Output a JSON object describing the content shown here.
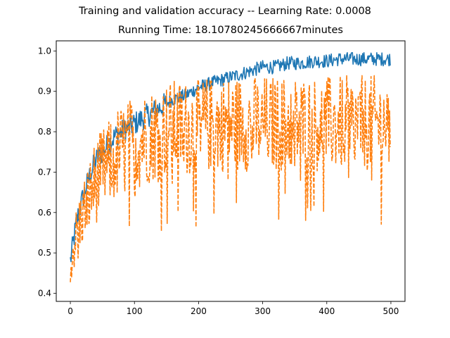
{
  "chart_data": {
    "type": "line",
    "suptitle": "Training and validation accuracy -- Learning Rate: 0.0008",
    "title": "Running Time: 18.10780245666667minutes",
    "xlabel": "",
    "ylabel": "",
    "xlim": [
      -22,
      522
    ],
    "ylim": [
      0.38,
      1.025
    ],
    "xticks": [
      0,
      100,
      200,
      300,
      400,
      500
    ],
    "xtick_labels": [
      "0",
      "100",
      "200",
      "300",
      "400",
      "500"
    ],
    "yticks": [
      0.4,
      0.5,
      0.6,
      0.7,
      0.8,
      0.9,
      1.0
    ],
    "ytick_labels": [
      "0.4",
      "0.5",
      "0.6",
      "0.7",
      "0.8",
      "0.9",
      "1.0"
    ],
    "grid": false,
    "legend": "none",
    "n_epochs": 500,
    "series": [
      {
        "line_style": "solid",
        "color": "#1f77b4",
        "x": [
          0,
          10,
          20,
          30,
          40,
          50,
          60,
          70,
          80,
          90,
          100,
          120,
          140,
          160,
          180,
          200,
          220,
          240,
          260,
          280,
          300,
          320,
          340,
          360,
          380,
          400,
          420,
          440,
          460,
          480,
          499
        ],
        "y": [
          0.48,
          0.58,
          0.64,
          0.69,
          0.73,
          0.75,
          0.77,
          0.79,
          0.8,
          0.81,
          0.82,
          0.84,
          0.86,
          0.88,
          0.89,
          0.91,
          0.92,
          0.93,
          0.94,
          0.95,
          0.96,
          0.96,
          0.97,
          0.97,
          0.975,
          0.975,
          0.98,
          0.98,
          0.98,
          0.98,
          0.98
        ]
      },
      {
        "line_style": "dashed",
        "color": "#ff7f0e",
        "x": [
          0,
          10,
          20,
          30,
          40,
          50,
          60,
          70,
          80,
          90,
          100,
          120,
          140,
          160,
          180,
          200,
          220,
          240,
          260,
          280,
          300,
          320,
          340,
          360,
          380,
          400,
          420,
          440,
          460,
          480,
          499
        ],
        "y": [
          0.47,
          0.55,
          0.6,
          0.64,
          0.68,
          0.7,
          0.72,
          0.74,
          0.75,
          0.76,
          0.77,
          0.79,
          0.8,
          0.81,
          0.81,
          0.81,
          0.82,
          0.82,
          0.82,
          0.82,
          0.82,
          0.82,
          0.82,
          0.82,
          0.82,
          0.82,
          0.82,
          0.82,
          0.82,
          0.82,
          0.82
        ],
        "spread": [
          0.04,
          0.06,
          0.07,
          0.08,
          0.09,
          0.09,
          0.09,
          0.1,
          0.1,
          0.1,
          0.1,
          0.1,
          0.1,
          0.1,
          0.1,
          0.1,
          0.1,
          0.1,
          0.1,
          0.1,
          0.1,
          0.1,
          0.1,
          0.1,
          0.1,
          0.1,
          0.1,
          0.1,
          0.1,
          0.1,
          0.1
        ],
        "min": 0.41,
        "max": 1.0
      }
    ]
  }
}
